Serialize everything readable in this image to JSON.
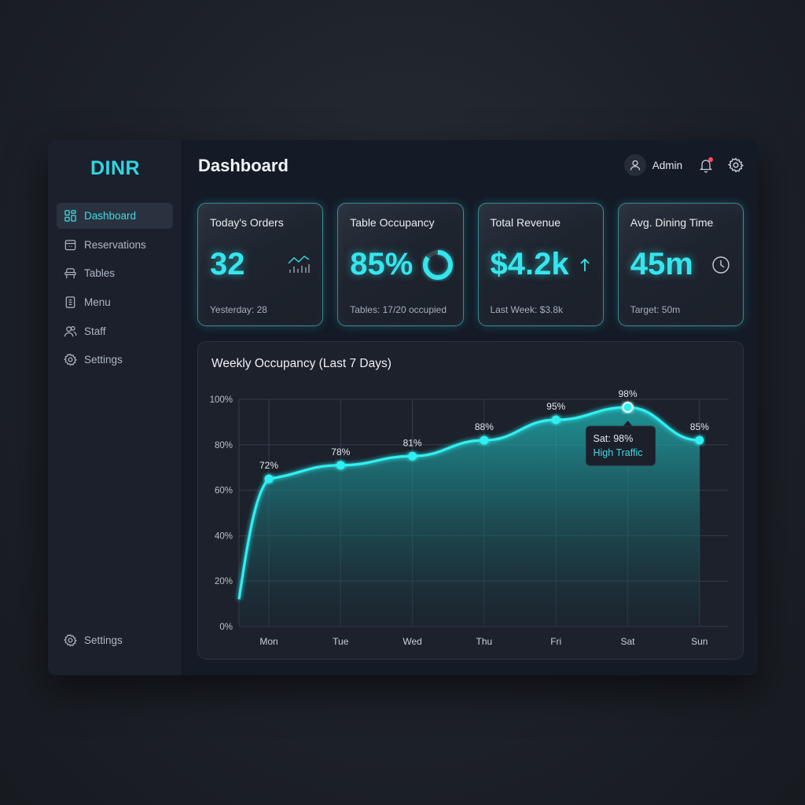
{
  "app": {
    "logo": "DINR"
  },
  "sidebar": {
    "items": [
      {
        "label": "Dashboard",
        "icon": "dashboard-grid-icon",
        "active": true
      },
      {
        "label": "Reservations",
        "icon": "calendar-icon",
        "active": false
      },
      {
        "label": "Tables",
        "icon": "table-icon",
        "active": false
      },
      {
        "label": "Menu",
        "icon": "menu-document-icon",
        "active": false
      },
      {
        "label": "Staff",
        "icon": "users-icon",
        "active": false
      },
      {
        "label": "Settings",
        "icon": "gear-icon",
        "active": false
      }
    ],
    "bottom_item": {
      "label": "Settings",
      "icon": "gear-icon"
    }
  },
  "header": {
    "title": "Dashboard",
    "user_label": "Admin",
    "notification_dot": true
  },
  "cards": [
    {
      "title": "Today's Orders",
      "value": "32",
      "sub": "Yesterday: 28",
      "icon": "trend-chart-icon"
    },
    {
      "title": "Table Occupancy",
      "value": "85%",
      "sub": "Tables: 17/20 occupied",
      "icon": "donut-progress-icon",
      "progress": 85
    },
    {
      "title": "Total Revenue",
      "value": "$4.2k",
      "sub": "Last Week: $3.8k",
      "icon": "arrow-up-icon"
    },
    {
      "title": "Avg. Dining Time",
      "value": "45m",
      "sub": "Target: 50m",
      "icon": "clock-icon"
    }
  ],
  "colors": {
    "accent": "#35e6ee",
    "notification": "#ff4d5a",
    "panel": "#1c212b"
  },
  "chart": {
    "title": "Weekly Occupancy (Last 7 Days)",
    "tooltip": {
      "line1": "Sat: 98%",
      "line2": "High Traffic"
    }
  },
  "chart_data": {
    "type": "area",
    "title": "Weekly Occupancy (Last 7 Days)",
    "categories": [
      "Mon",
      "Tue",
      "Wed",
      "Thu",
      "Fri",
      "Sat",
      "Sun"
    ],
    "values": [
      72,
      78,
      81,
      88,
      95,
      98,
      85
    ],
    "labels": [
      "72%",
      "78%",
      "81%",
      "88%",
      "95%",
      "98%",
      "85%"
    ],
    "y_ticks": [
      "0%",
      "20%",
      "40%",
      "60%",
      "80%",
      "100%"
    ],
    "ylim": [
      0,
      100
    ],
    "xlabel": "",
    "ylabel": "",
    "grid": true,
    "highlight": {
      "category": "Sat",
      "value": 98,
      "note": "High Traffic"
    }
  }
}
